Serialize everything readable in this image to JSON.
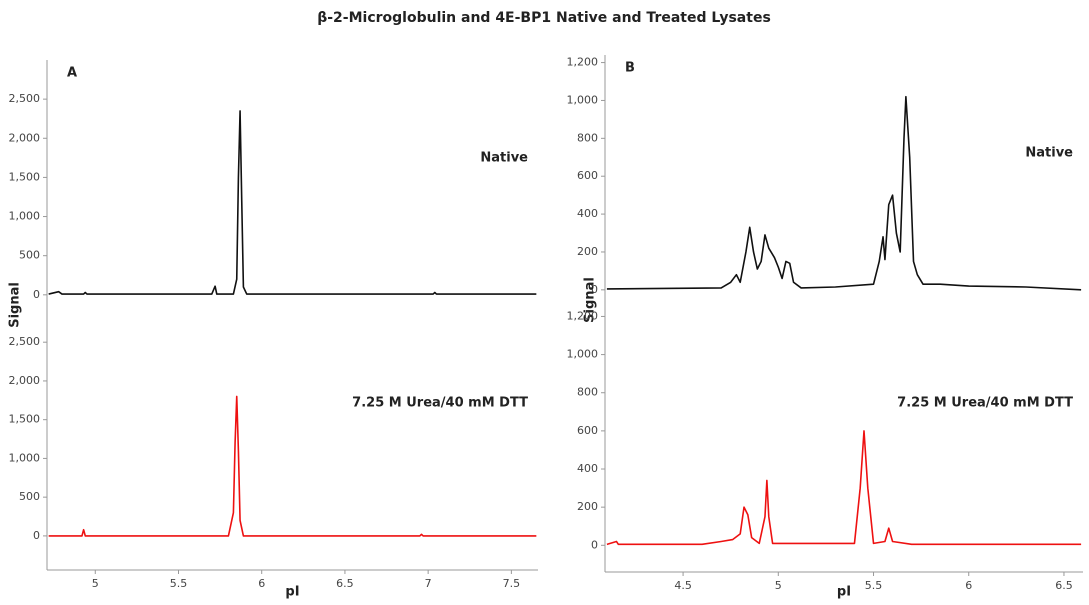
{
  "title": "β-2-Microglobulin and 4E-BP1 Native and Treated Lysates",
  "chart_data": [
    {
      "type": "line",
      "panel_label": "A",
      "annotation": "Native",
      "ylabel": "Signal",
      "color": "#111111",
      "xlim": [
        4.71,
        7.66
      ],
      "ylim": [
        -130,
        3000
      ],
      "yticks": [
        0,
        500,
        {
          "value": 1000,
          "label": "1,000"
        },
        {
          "value": 1500,
          "label": "1,500"
        },
        {
          "value": 2000,
          "label": "2,000"
        },
        {
          "value": 2500,
          "label": "2,500"
        }
      ],
      "x": [
        4.72,
        4.78,
        4.8,
        4.93,
        4.94,
        4.95,
        5.7,
        5.72,
        5.73,
        5.83,
        5.85,
        5.86,
        5.87,
        5.88,
        5.89,
        5.91,
        7.03,
        7.04,
        7.05,
        7.65
      ],
      "values": [
        10,
        40,
        10,
        10,
        30,
        10,
        10,
        110,
        10,
        10,
        200,
        1500,
        2350,
        1200,
        100,
        10,
        10,
        30,
        10,
        10
      ]
    },
    {
      "type": "line",
      "annotation": "7.25 M Urea/40 mM DTT",
      "xlabel": "pI",
      "color": "#ee1111",
      "xlim": [
        4.71,
        7.66
      ],
      "ylim": [
        -440,
        2980
      ],
      "yticks": [
        0,
        500,
        {
          "value": 1000,
          "label": "1,000"
        },
        {
          "value": 1500,
          "label": "1,500"
        },
        {
          "value": 2000,
          "label": "2,000"
        },
        {
          "value": 2500,
          "label": "2,500"
        }
      ],
      "xticks": [
        5,
        5.5,
        6,
        6.5,
        7,
        7.5
      ],
      "x": [
        4.72,
        4.92,
        4.93,
        4.94,
        5.8,
        5.83,
        5.84,
        5.85,
        5.86,
        5.87,
        5.89,
        6.95,
        6.96,
        6.97,
        7.65
      ],
      "values": [
        0,
        0,
        80,
        0,
        0,
        300,
        1200,
        1800,
        1100,
        200,
        0,
        0,
        20,
        0,
        0
      ]
    },
    {
      "type": "line",
      "panel_label": "B",
      "annotation": "Native",
      "ylabel": "Signal",
      "color": "#111111",
      "xlim": [
        4.09,
        6.6
      ],
      "ylim": [
        -80,
        1240
      ],
      "yticks": [
        0,
        200,
        400,
        600,
        800,
        {
          "value": 1000,
          "label": "1,000"
        },
        {
          "value": 1200,
          "label": "1,200"
        }
      ],
      "x": [
        4.1,
        4.7,
        4.75,
        4.78,
        4.8,
        4.83,
        4.85,
        4.87,
        4.89,
        4.91,
        4.93,
        4.95,
        4.98,
        5.0,
        5.02,
        5.04,
        5.06,
        5.08,
        5.12,
        5.3,
        5.5,
        5.53,
        5.55,
        5.56,
        5.58,
        5.6,
        5.62,
        5.64,
        5.66,
        5.67,
        5.69,
        5.71,
        5.73,
        5.76,
        5.85,
        6.0,
        6.3,
        6.59
      ],
      "values": [
        5,
        10,
        40,
        80,
        40,
        200,
        330,
        200,
        110,
        150,
        290,
        220,
        170,
        120,
        60,
        150,
        140,
        40,
        10,
        15,
        30,
        150,
        280,
        160,
        450,
        500,
        300,
        200,
        800,
        1020,
        700,
        150,
        80,
        30,
        30,
        20,
        15,
        0
      ]
    },
    {
      "type": "line",
      "annotation": "7.25 M Urea/40 mM DTT",
      "xlabel": "pI",
      "color": "#ee1111",
      "xlim": [
        4.09,
        6.6
      ],
      "ylim": [
        -140,
        1260
      ],
      "yticks": [
        0,
        200,
        400,
        600,
        800,
        {
          "value": 1000,
          "label": "1,000"
        },
        {
          "value": 1200,
          "label": "1,200"
        }
      ],
      "xticks": [
        4.5,
        5,
        5.5,
        6,
        6.5
      ],
      "x": [
        4.1,
        4.15,
        4.16,
        4.6,
        4.7,
        4.76,
        4.8,
        4.82,
        4.84,
        4.86,
        4.9,
        4.93,
        4.94,
        4.95,
        4.97,
        5.4,
        5.43,
        5.45,
        5.47,
        5.5,
        5.56,
        5.58,
        5.6,
        5.7,
        6.0,
        6.59
      ],
      "values": [
        5,
        20,
        5,
        5,
        20,
        30,
        60,
        200,
        160,
        40,
        10,
        150,
        340,
        150,
        10,
        10,
        300,
        600,
        300,
        10,
        20,
        90,
        20,
        5,
        5,
        5
      ]
    }
  ]
}
